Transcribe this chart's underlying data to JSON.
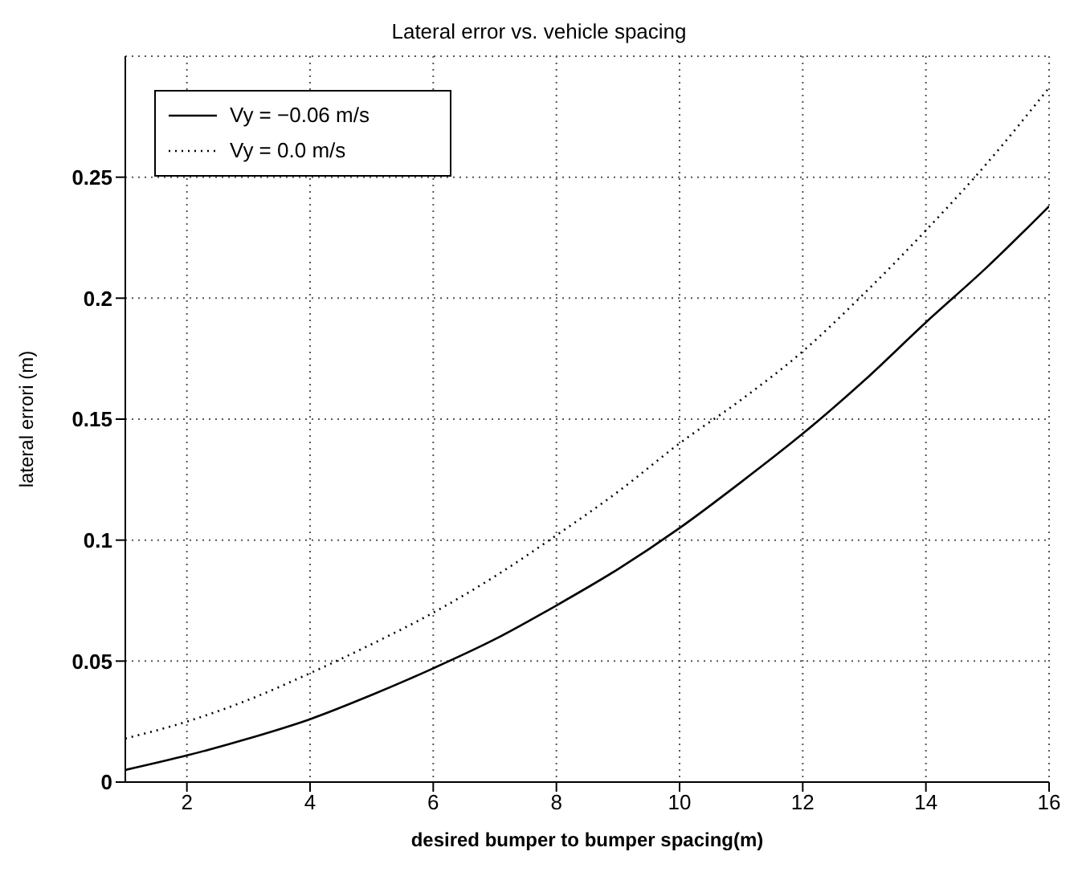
{
  "chart_data": {
    "type": "line",
    "title": "Lateral error vs. vehicle spacing",
    "xlabel": "desired bumper to bumper spacing(m)",
    "ylabel": "lateral errori (m)",
    "x": [
      1,
      2,
      3,
      4,
      5,
      6,
      7,
      8,
      9,
      10,
      11,
      12,
      13,
      14,
      15,
      16
    ],
    "series": [
      {
        "name": "Vy = −0.06 m/s",
        "color": "#000000",
        "line_style": "solid",
        "values": [
          0.005,
          0.011,
          0.018,
          0.026,
          0.036,
          0.047,
          0.059,
          0.073,
          0.088,
          0.105,
          0.124,
          0.144,
          0.166,
          0.19,
          0.213,
          0.238
        ]
      },
      {
        "name": "Vy = 0.0 m/s",
        "color": "#000000",
        "line_style": "dotted",
        "values": [
          0.018,
          0.025,
          0.034,
          0.045,
          0.057,
          0.07,
          0.085,
          0.102,
          0.12,
          0.14,
          0.158,
          0.178,
          0.202,
          0.228,
          0.256,
          0.287
        ]
      }
    ],
    "xlim": [
      1,
      16
    ],
    "xticks": [
      2,
      4,
      6,
      8,
      10,
      12,
      14,
      16
    ],
    "ylim": [
      0,
      0.3
    ],
    "yticks": [
      0,
      0.05,
      0.1,
      0.15,
      0.2,
      0.25
    ],
    "grid": true,
    "legend": "top left",
    "marker": "none"
  }
}
